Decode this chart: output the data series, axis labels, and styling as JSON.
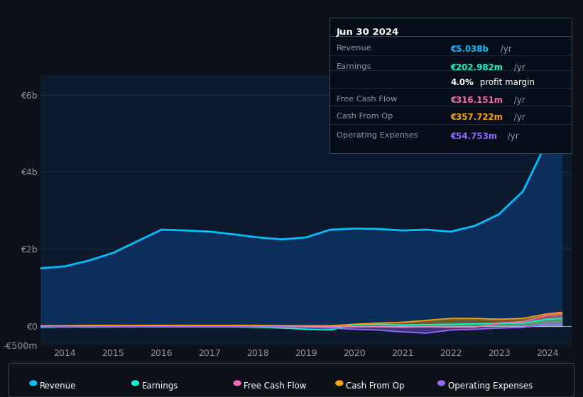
{
  "bg_color": "#0d1117",
  "chart_bg": "#0d1a2e",
  "grid_color": "#1e3050",
  "axis_label_color": "#8899aa",
  "years": [
    2013.5,
    2014,
    2014.5,
    2015,
    2015.5,
    2016,
    2016.5,
    2017,
    2017.5,
    2018,
    2018.5,
    2019,
    2019.5,
    2020,
    2020.5,
    2021,
    2021.5,
    2022,
    2022.5,
    2023,
    2023.5,
    2024,
    2024.3
  ],
  "revenue": [
    1500,
    1550,
    1700,
    1900,
    2200,
    2500,
    2480,
    2450,
    2380,
    2300,
    2250,
    2300,
    2500,
    2530,
    2520,
    2480,
    2500,
    2450,
    2600,
    2900,
    3500,
    4800,
    5038
  ],
  "earnings": [
    -30,
    -20,
    -25,
    -20,
    -15,
    -10,
    -15,
    -20,
    -20,
    -30,
    -50,
    -80,
    -100,
    40,
    50,
    30,
    40,
    50,
    60,
    70,
    80,
    180,
    203
  ],
  "free_cash_flow": [
    -20,
    -20,
    -20,
    -20,
    -20,
    -20,
    -20,
    -20,
    -20,
    -20,
    -30,
    -20,
    -20,
    -20,
    -20,
    -30,
    -20,
    -30,
    -30,
    80,
    120,
    280,
    316
  ],
  "cash_from_op": [
    10,
    10,
    20,
    20,
    20,
    20,
    20,
    20,
    20,
    20,
    10,
    10,
    10,
    50,
    80,
    100,
    150,
    200,
    200,
    180,
    200,
    320,
    358
  ],
  "operating_expenses": [
    -20,
    -20,
    -20,
    -20,
    -15,
    -15,
    -20,
    -20,
    -20,
    -20,
    -20,
    -30,
    -50,
    -80,
    -100,
    -150,
    -180,
    -100,
    -80,
    -50,
    -30,
    50,
    55
  ],
  "revenue_color": "#00bfff",
  "earnings_color": "#00ffcc",
  "fcf_color": "#ff69b4",
  "cashop_color": "#ffa500",
  "opex_color": "#9966ff",
  "ylim_min": -500000000,
  "ylim_max": 6500000000,
  "yticks": [
    0,
    2000000000,
    4000000000,
    6000000000
  ],
  "ytick_labels": [
    "€0",
    "€2b",
    "€4b",
    "€6b"
  ],
  "ytick_extra": -500000000,
  "ytick_extra_label": "-€500m",
  "xtick_years": [
    2014,
    2015,
    2016,
    2017,
    2018,
    2019,
    2020,
    2021,
    2022,
    2023,
    2024
  ],
  "legend_items": [
    "Revenue",
    "Earnings",
    "Free Cash Flow",
    "Cash From Op",
    "Operating Expenses"
  ],
  "legend_colors": [
    "#00bfff",
    "#00ffcc",
    "#ff69b4",
    "#ffa500",
    "#9966ff"
  ],
  "info_box_title": "Jun 30 2024",
  "info_rows": [
    {
      "label": "Revenue",
      "value": "€5.038b",
      "suffix": " /yr",
      "value_color": "#00bfff"
    },
    {
      "label": "Earnings",
      "value": "€202.982m",
      "suffix": " /yr",
      "value_color": "#00ffcc"
    },
    {
      "label": "",
      "value": "4.0%",
      "suffix": " profit margin",
      "value_color": "#ffffff",
      "bold": true
    },
    {
      "label": "Free Cash Flow",
      "value": "€316.151m",
      "suffix": " /yr",
      "value_color": "#ff69b4"
    },
    {
      "label": "Cash From Op",
      "value": "€357.722m",
      "suffix": " /yr",
      "value_color": "#ffa500"
    },
    {
      "label": "Operating Expenses",
      "value": "€54.753m",
      "suffix": " /yr",
      "value_color": "#9966ff"
    }
  ]
}
